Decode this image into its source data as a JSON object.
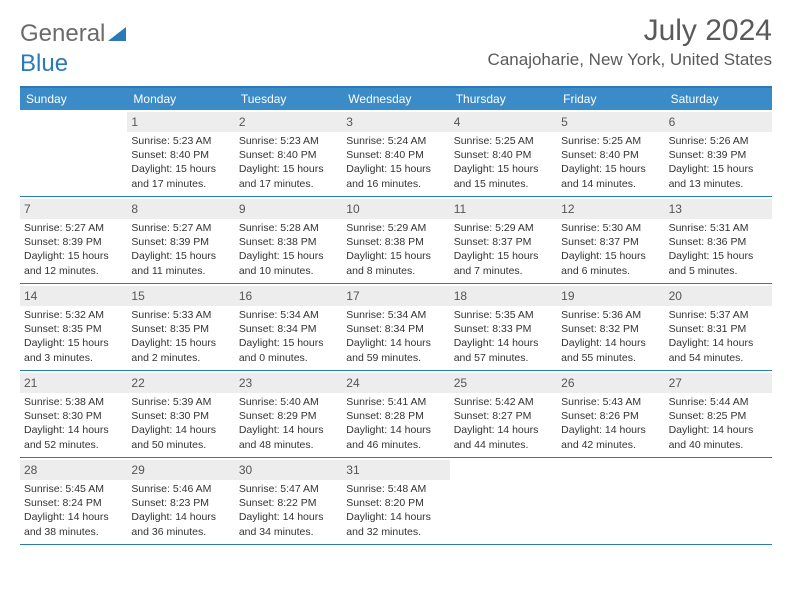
{
  "brand": {
    "part1": "General",
    "part2": "Blue"
  },
  "title": "July 2024",
  "location": "Canajoharie, New York, United States",
  "weekday_header_bg": "#3b8bc8",
  "accent_color": "#2a7ab9",
  "daynum_bg": "#ededed",
  "weekdays": [
    "Sunday",
    "Monday",
    "Tuesday",
    "Wednesday",
    "Thursday",
    "Friday",
    "Saturday"
  ],
  "weeks": [
    [
      null,
      {
        "n": "1",
        "sr": "Sunrise: 5:23 AM",
        "ss": "Sunset: 8:40 PM",
        "dl1": "Daylight: 15 hours",
        "dl2": "and 17 minutes."
      },
      {
        "n": "2",
        "sr": "Sunrise: 5:23 AM",
        "ss": "Sunset: 8:40 PM",
        "dl1": "Daylight: 15 hours",
        "dl2": "and 17 minutes."
      },
      {
        "n": "3",
        "sr": "Sunrise: 5:24 AM",
        "ss": "Sunset: 8:40 PM",
        "dl1": "Daylight: 15 hours",
        "dl2": "and 16 minutes."
      },
      {
        "n": "4",
        "sr": "Sunrise: 5:25 AM",
        "ss": "Sunset: 8:40 PM",
        "dl1": "Daylight: 15 hours",
        "dl2": "and 15 minutes."
      },
      {
        "n": "5",
        "sr": "Sunrise: 5:25 AM",
        "ss": "Sunset: 8:40 PM",
        "dl1": "Daylight: 15 hours",
        "dl2": "and 14 minutes."
      },
      {
        "n": "6",
        "sr": "Sunrise: 5:26 AM",
        "ss": "Sunset: 8:39 PM",
        "dl1": "Daylight: 15 hours",
        "dl2": "and 13 minutes."
      }
    ],
    [
      {
        "n": "7",
        "sr": "Sunrise: 5:27 AM",
        "ss": "Sunset: 8:39 PM",
        "dl1": "Daylight: 15 hours",
        "dl2": "and 12 minutes."
      },
      {
        "n": "8",
        "sr": "Sunrise: 5:27 AM",
        "ss": "Sunset: 8:39 PM",
        "dl1": "Daylight: 15 hours",
        "dl2": "and 11 minutes."
      },
      {
        "n": "9",
        "sr": "Sunrise: 5:28 AM",
        "ss": "Sunset: 8:38 PM",
        "dl1": "Daylight: 15 hours",
        "dl2": "and 10 minutes."
      },
      {
        "n": "10",
        "sr": "Sunrise: 5:29 AM",
        "ss": "Sunset: 8:38 PM",
        "dl1": "Daylight: 15 hours",
        "dl2": "and 8 minutes."
      },
      {
        "n": "11",
        "sr": "Sunrise: 5:29 AM",
        "ss": "Sunset: 8:37 PM",
        "dl1": "Daylight: 15 hours",
        "dl2": "and 7 minutes."
      },
      {
        "n": "12",
        "sr": "Sunrise: 5:30 AM",
        "ss": "Sunset: 8:37 PM",
        "dl1": "Daylight: 15 hours",
        "dl2": "and 6 minutes."
      },
      {
        "n": "13",
        "sr": "Sunrise: 5:31 AM",
        "ss": "Sunset: 8:36 PM",
        "dl1": "Daylight: 15 hours",
        "dl2": "and 5 minutes."
      }
    ],
    [
      {
        "n": "14",
        "sr": "Sunrise: 5:32 AM",
        "ss": "Sunset: 8:35 PM",
        "dl1": "Daylight: 15 hours",
        "dl2": "and 3 minutes."
      },
      {
        "n": "15",
        "sr": "Sunrise: 5:33 AM",
        "ss": "Sunset: 8:35 PM",
        "dl1": "Daylight: 15 hours",
        "dl2": "and 2 minutes."
      },
      {
        "n": "16",
        "sr": "Sunrise: 5:34 AM",
        "ss": "Sunset: 8:34 PM",
        "dl1": "Daylight: 15 hours",
        "dl2": "and 0 minutes."
      },
      {
        "n": "17",
        "sr": "Sunrise: 5:34 AM",
        "ss": "Sunset: 8:34 PM",
        "dl1": "Daylight: 14 hours",
        "dl2": "and 59 minutes."
      },
      {
        "n": "18",
        "sr": "Sunrise: 5:35 AM",
        "ss": "Sunset: 8:33 PM",
        "dl1": "Daylight: 14 hours",
        "dl2": "and 57 minutes."
      },
      {
        "n": "19",
        "sr": "Sunrise: 5:36 AM",
        "ss": "Sunset: 8:32 PM",
        "dl1": "Daylight: 14 hours",
        "dl2": "and 55 minutes."
      },
      {
        "n": "20",
        "sr": "Sunrise: 5:37 AM",
        "ss": "Sunset: 8:31 PM",
        "dl1": "Daylight: 14 hours",
        "dl2": "and 54 minutes."
      }
    ],
    [
      {
        "n": "21",
        "sr": "Sunrise: 5:38 AM",
        "ss": "Sunset: 8:30 PM",
        "dl1": "Daylight: 14 hours",
        "dl2": "and 52 minutes."
      },
      {
        "n": "22",
        "sr": "Sunrise: 5:39 AM",
        "ss": "Sunset: 8:30 PM",
        "dl1": "Daylight: 14 hours",
        "dl2": "and 50 minutes."
      },
      {
        "n": "23",
        "sr": "Sunrise: 5:40 AM",
        "ss": "Sunset: 8:29 PM",
        "dl1": "Daylight: 14 hours",
        "dl2": "and 48 minutes."
      },
      {
        "n": "24",
        "sr": "Sunrise: 5:41 AM",
        "ss": "Sunset: 8:28 PM",
        "dl1": "Daylight: 14 hours",
        "dl2": "and 46 minutes."
      },
      {
        "n": "25",
        "sr": "Sunrise: 5:42 AM",
        "ss": "Sunset: 8:27 PM",
        "dl1": "Daylight: 14 hours",
        "dl2": "and 44 minutes."
      },
      {
        "n": "26",
        "sr": "Sunrise: 5:43 AM",
        "ss": "Sunset: 8:26 PM",
        "dl1": "Daylight: 14 hours",
        "dl2": "and 42 minutes."
      },
      {
        "n": "27",
        "sr": "Sunrise: 5:44 AM",
        "ss": "Sunset: 8:25 PM",
        "dl1": "Daylight: 14 hours",
        "dl2": "and 40 minutes."
      }
    ],
    [
      {
        "n": "28",
        "sr": "Sunrise: 5:45 AM",
        "ss": "Sunset: 8:24 PM",
        "dl1": "Daylight: 14 hours",
        "dl2": "and 38 minutes."
      },
      {
        "n": "29",
        "sr": "Sunrise: 5:46 AM",
        "ss": "Sunset: 8:23 PM",
        "dl1": "Daylight: 14 hours",
        "dl2": "and 36 minutes."
      },
      {
        "n": "30",
        "sr": "Sunrise: 5:47 AM",
        "ss": "Sunset: 8:22 PM",
        "dl1": "Daylight: 14 hours",
        "dl2": "and 34 minutes."
      },
      {
        "n": "31",
        "sr": "Sunrise: 5:48 AM",
        "ss": "Sunset: 8:20 PM",
        "dl1": "Daylight: 14 hours",
        "dl2": "and 32 minutes."
      },
      null,
      null,
      null
    ]
  ]
}
